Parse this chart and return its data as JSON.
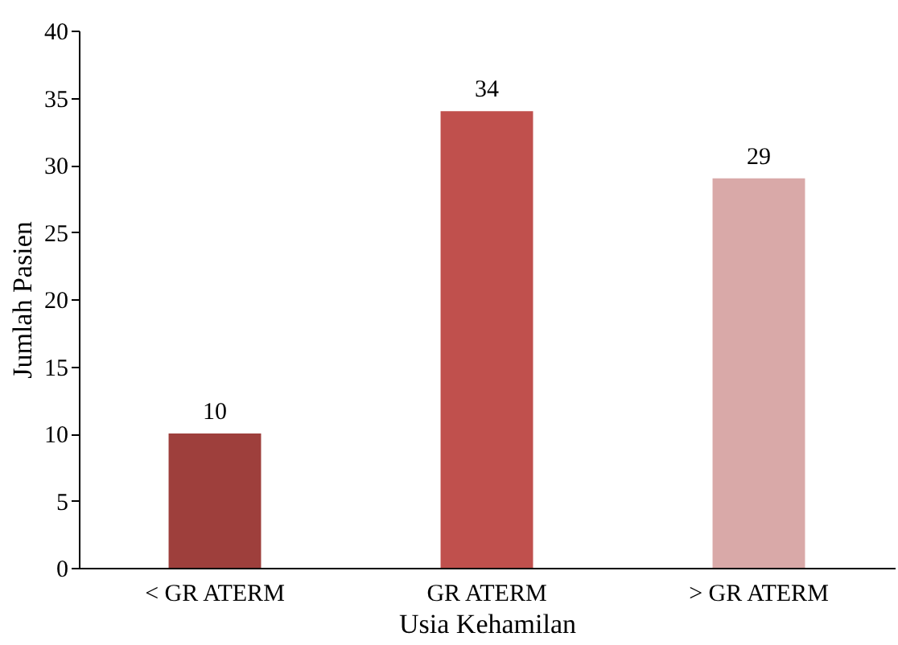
{
  "chart_data": {
    "type": "bar",
    "xlabel": "Usia Kehamilan",
    "ylabel": "Jumlah Pasien",
    "categories": [
      "< GR ATERM",
      "GR ATERM",
      "> GR ATERM"
    ],
    "values": [
      10,
      34,
      29
    ],
    "colors": [
      "#9e3f3c",
      "#c0504d",
      "#d9a9a8"
    ],
    "ylim": [
      0,
      40
    ],
    "yticks": [
      0,
      5,
      10,
      15,
      20,
      25,
      30,
      35,
      40
    ],
    "data_labels": true,
    "grid": false
  }
}
